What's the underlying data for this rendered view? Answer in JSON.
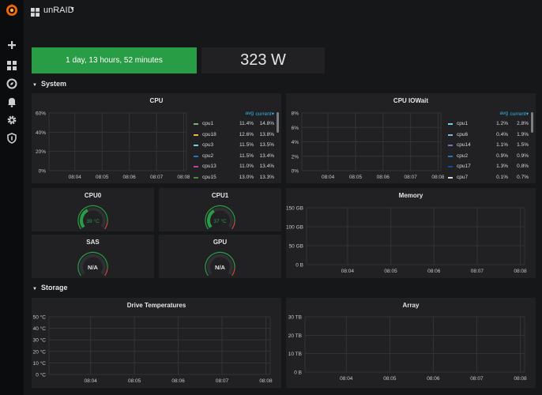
{
  "app": {
    "title": "unRAID"
  },
  "sidebar": {
    "items": [
      "grafana-logo-icon",
      "plus-icon",
      "dashboards-icon",
      "explore-icon",
      "bell-icon",
      "gear-icon",
      "shield-icon"
    ]
  },
  "stats": {
    "uptime": "1 day, 13 hours, 52 minutes",
    "power": "323 W",
    "uptime_color": "#299c46"
  },
  "rows": {
    "system": "System",
    "storage": "Storage"
  },
  "legend_headers": {
    "avg": "avg",
    "current": "current▾"
  },
  "cpu": {
    "title": "CPU",
    "y_ticks": [
      "60%",
      "40%",
      "20%",
      "0%"
    ],
    "x_ticks": [
      "08:04",
      "08:05",
      "08:06",
      "08:07",
      "08:08"
    ],
    "legend": [
      {
        "name": "cpu1",
        "avg": "11.4%",
        "current": "14.8%",
        "color": "#7eb26d"
      },
      {
        "name": "cpu18",
        "avg": "12.6%",
        "current": "13.8%",
        "color": "#eab839"
      },
      {
        "name": "cpu3",
        "avg": "11.5%",
        "current": "13.5%",
        "color": "#6ed0e0"
      },
      {
        "name": "cpu2",
        "avg": "11.5%",
        "current": "13.4%",
        "color": "#1f78c1"
      },
      {
        "name": "cpu13",
        "avg": "11.0%",
        "current": "13.4%",
        "color": "#ba43a9"
      },
      {
        "name": "cpu15",
        "avg": "13.0%",
        "current": "13.3%",
        "color": "#508642"
      }
    ]
  },
  "cpu_iowait": {
    "title": "CPU IOWait",
    "y_ticks": [
      "8%",
      "6%",
      "4%",
      "2%",
      "0%"
    ],
    "x_ticks": [
      "08:04",
      "08:05",
      "08:06",
      "08:07",
      "08:08"
    ],
    "legend": [
      {
        "name": "cpu1",
        "avg": "1.2%",
        "current": "2.8%",
        "color": "#6ed0e0"
      },
      {
        "name": "cpu6",
        "avg": "0.4%",
        "current": "1.9%",
        "color": "#82b5d8"
      },
      {
        "name": "cpu14",
        "avg": "1.1%",
        "current": "1.5%",
        "color": "#806eb7"
      },
      {
        "name": "cpu2",
        "avg": "0.9%",
        "current": "0.9%",
        "color": "#1f78c1"
      },
      {
        "name": "cpu17",
        "avg": "1.3%",
        "current": "0.8%",
        "color": "#0a50a1"
      },
      {
        "name": "cpu7",
        "avg": "0.1%",
        "current": "0.7%",
        "color": "#d8d9da"
      }
    ]
  },
  "gauges": [
    {
      "title": "CPU0",
      "value": "39 °C",
      "level": 0.39,
      "active": true
    },
    {
      "title": "CPU1",
      "value": "37 °C",
      "level": 0.37,
      "active": true
    },
    {
      "title": "SAS",
      "value": "N/A",
      "level": 0,
      "active": false
    },
    {
      "title": "GPU",
      "value": "N/A",
      "level": 0,
      "active": false
    }
  ],
  "memory": {
    "title": "Memory",
    "y_ticks": [
      "150 GB",
      "100 GB",
      "50 GB",
      "0 B"
    ],
    "x_ticks": [
      "08:04",
      "08:05",
      "08:06",
      "08:07",
      "08:08"
    ]
  },
  "drive_temps": {
    "title": "Drive Temperatures",
    "y_ticks": [
      "50 °C",
      "40 °C",
      "30 °C",
      "20 °C",
      "10 °C",
      "0 °C"
    ],
    "x_ticks": [
      "08:04",
      "08:05",
      "08:06",
      "08:07",
      "08:08"
    ]
  },
  "array": {
    "title": "Array",
    "y_ticks": [
      "30 TB",
      "20 TB",
      "10 TB",
      "0 B"
    ],
    "x_ticks": [
      "08:04",
      "08:05",
      "08:06",
      "08:07",
      "08:08"
    ]
  },
  "colors": {
    "gauge_green": "#299c46",
    "gauge_red": "#d44a3a",
    "gauge_orange": "#e5ac0e",
    "grid": "#333438"
  }
}
